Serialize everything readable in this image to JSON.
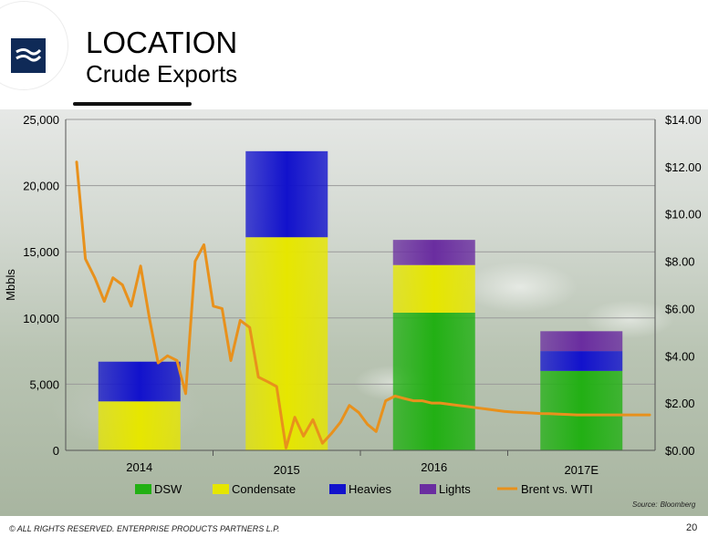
{
  "header": {
    "title": "LOCATION",
    "subtitle": "Crude Exports"
  },
  "logo": {
    "icon": "enterprise-logo-icon",
    "color": "#0f2a57"
  },
  "footer": {
    "copyright": "© ALL RIGHTS RESERVED. ENTERPRISE PRODUCTS PARTNERS L.P.",
    "page_number": "20"
  },
  "source": {
    "label": "Source:",
    "value": "Bloomberg"
  },
  "chart_data": {
    "type": "bar",
    "stacked": true,
    "title": "",
    "xlabel": "",
    "ylabel": "Mbbls",
    "ylim": [
      0,
      25000
    ],
    "y_ticks": [
      0,
      5000,
      10000,
      15000,
      20000,
      25000
    ],
    "y_tick_labels": [
      "0",
      "5,000",
      "10,000",
      "15,000",
      "20,000",
      "25,000"
    ],
    "y2lim": [
      0,
      14
    ],
    "y2_ticks": [
      0,
      2,
      4,
      6,
      8,
      10,
      12,
      14
    ],
    "y2_tick_labels": [
      "$0.00",
      "$2.00",
      "$4.00",
      "$6.00",
      "$8.00",
      "$10.00",
      "$12.00",
      "$14.00"
    ],
    "categories": [
      "2014",
      "2015",
      "2016",
      "2017E"
    ],
    "series": [
      {
        "name": "DSW",
        "color": "#22b014",
        "values": [
          0,
          0,
          10400,
          6000
        ]
      },
      {
        "name": "Condensate",
        "color": "#e6e600",
        "values": [
          3700,
          16100,
          3600,
          0
        ]
      },
      {
        "name": "Heavies",
        "color": "#1212cc",
        "values": [
          3000,
          6500,
          0,
          1500
        ]
      },
      {
        "name": "Lights",
        "color": "#6a2da0",
        "values": [
          0,
          0,
          1900,
          1500
        ]
      }
    ],
    "line_series": {
      "name": "Brent vs. WTI",
      "axis": "secondary",
      "color": "#e8911c",
      "x": [
        0.0,
        0.12,
        0.25,
        0.38,
        0.5,
        0.63,
        0.75,
        0.88,
        1.0,
        1.12,
        1.25,
        1.38,
        1.5,
        1.63,
        1.75,
        1.88,
        2.0,
        2.12,
        2.25,
        2.38,
        2.5,
        2.63,
        2.75,
        2.88,
        3.0,
        3.12,
        3.25,
        3.38,
        3.5,
        3.63,
        3.75,
        3.88,
        4.0,
        4.12,
        4.25,
        4.38,
        4.5,
        4.63,
        4.75,
        4.88,
        5.0,
        5.12,
        5.25,
        5.38,
        5.5,
        5.63,
        5.75,
        5.88,
        6.0,
        6.12,
        6.25,
        6.38,
        6.5,
        6.63,
        6.75,
        6.88,
        7.0,
        7.12,
        7.25,
        7.38,
        7.5,
        7.63,
        7.75,
        7.88
      ],
      "values": [
        12.2,
        8.1,
        7.3,
        6.3,
        7.3,
        7.0,
        6.1,
        7.8,
        5.6,
        3.7,
        4.0,
        3.8,
        2.4,
        8.0,
        8.7,
        6.1,
        6.0,
        3.8,
        5.5,
        5.2,
        3.1,
        2.9,
        2.7,
        0.1,
        1.4,
        0.6,
        1.3,
        0.3,
        0.7,
        1.2,
        1.9,
        1.6,
        1.1,
        0.8,
        2.1,
        2.3,
        2.2,
        2.1,
        2.1,
        2.0,
        2.0,
        1.95,
        1.9,
        1.85,
        1.8,
        1.75,
        1.7,
        1.65,
        1.62,
        1.6,
        1.58,
        1.56,
        1.55,
        1.53,
        1.52,
        1.5,
        1.5,
        1.5,
        1.5,
        1.5,
        1.5,
        1.5,
        1.5,
        1.5
      ]
    },
    "grid": true,
    "legend_position": "bottom"
  }
}
